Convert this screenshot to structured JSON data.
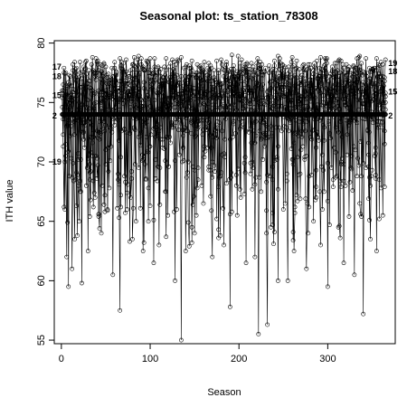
{
  "chart_data": {
    "type": "line",
    "title": "Seasonal plot: ts_station_78308",
    "xlabel": "Season",
    "ylabel": "ITH value",
    "xlim": [
      -8,
      376
    ],
    "ylim": [
      54.7,
      80.2
    ],
    "xticks": [
      0,
      100,
      200,
      300
    ],
    "yticks": [
      55,
      60,
      65,
      70,
      75,
      80
    ],
    "grid": false,
    "legend": "none",
    "series_color": "#000000",
    "marker": "open-circle",
    "num_seasons": 365,
    "year_labels": [
      {
        "text": "17",
        "x": 0,
        "y": 78.0
      },
      {
        "text": "18",
        "x": 0,
        "y": 77.2
      },
      {
        "text": "15",
        "x": 0,
        "y": 75.6
      },
      {
        "text": "2",
        "x": 0,
        "y": 73.9
      },
      {
        "text": "19",
        "x": 0,
        "y": 70.0
      },
      {
        "text": "19",
        "x": 365,
        "y": 78.3
      },
      {
        "text": "18",
        "x": 365,
        "y": 77.6
      },
      {
        "text": "15",
        "x": 365,
        "y": 75.9
      },
      {
        "text": "2",
        "x": 365,
        "y": 73.9
      }
    ],
    "series": [
      {
        "name": "",
        "flat": true,
        "value": 74.0,
        "x_range": [
          1,
          365
        ]
      },
      {
        "name": "",
        "x_range": [
          1,
          365
        ],
        "base": 75.5,
        "amplitude": 2.8,
        "seed": 11,
        "dips": [
          {
            "x": 8,
            "y": 59.5
          },
          {
            "x": 12,
            "y": 61.0
          },
          {
            "x": 23,
            "y": 59.8
          },
          {
            "x": 66,
            "y": 57.5
          },
          {
            "x": 110,
            "y": 63.0
          },
          {
            "x": 135,
            "y": 55.0
          },
          {
            "x": 190,
            "y": 57.8
          },
          {
            "x": 222,
            "y": 55.5
          },
          {
            "x": 232,
            "y": 56.3
          },
          {
            "x": 255,
            "y": 60.0
          },
          {
            "x": 300,
            "y": 59.5
          },
          {
            "x": 340,
            "y": 57.2
          }
        ]
      },
      {
        "name": "",
        "x_range": [
          1,
          365
        ],
        "base": 76.2,
        "amplitude": 2.5,
        "seed": 23,
        "dips": [
          {
            "x": 6,
            "y": 62.0
          },
          {
            "x": 30,
            "y": 62.5
          },
          {
            "x": 58,
            "y": 60.5
          },
          {
            "x": 92,
            "y": 62.5
          },
          {
            "x": 128,
            "y": 60.0
          },
          {
            "x": 170,
            "y": 62.0
          },
          {
            "x": 208,
            "y": 61.5
          },
          {
            "x": 244,
            "y": 60.0
          },
          {
            "x": 276,
            "y": 61.0
          },
          {
            "x": 318,
            "y": 61.5
          },
          {
            "x": 355,
            "y": 62.5
          }
        ]
      },
      {
        "name": "",
        "x_range": [
          1,
          365
        ],
        "base": 75.0,
        "amplitude": 3.0,
        "seed": 37,
        "dips": [
          {
            "x": 15,
            "y": 63.5
          },
          {
            "x": 45,
            "y": 64.0
          },
          {
            "x": 80,
            "y": 63.5
          },
          {
            "x": 104,
            "y": 61.5
          },
          {
            "x": 140,
            "y": 62.5
          },
          {
            "x": 183,
            "y": 63.0
          },
          {
            "x": 218,
            "y": 62.0
          },
          {
            "x": 262,
            "y": 62.5
          },
          {
            "x": 292,
            "y": 63.0
          },
          {
            "x": 330,
            "y": 60.5
          },
          {
            "x": 348,
            "y": 63.5
          }
        ]
      },
      {
        "name": "",
        "x_range": [
          1,
          365
        ],
        "base": 76.8,
        "amplitude": 2.2,
        "seed": 53,
        "dips": [
          {
            "x": 20,
            "y": 65.0
          },
          {
            "x": 52,
            "y": 66.0
          },
          {
            "x": 98,
            "y": 65.0
          },
          {
            "x": 150,
            "y": 64.0
          },
          {
            "x": 198,
            "y": 65.5
          },
          {
            "x": 236,
            "y": 64.5
          },
          {
            "x": 284,
            "y": 65.0
          },
          {
            "x": 312,
            "y": 64.5
          },
          {
            "x": 362,
            "y": 65.5
          }
        ]
      },
      {
        "name": "",
        "x_range": [
          1,
          365
        ],
        "base": 74.5,
        "amplitude": 3.2,
        "seed": 71,
        "dips": [
          {
            "x": 4,
            "y": 66.0
          },
          {
            "x": 38,
            "y": 67.0
          },
          {
            "x": 74,
            "y": 66.0
          },
          {
            "x": 118,
            "y": 67.5
          },
          {
            "x": 160,
            "y": 66.5
          },
          {
            "x": 202,
            "y": 67.0
          },
          {
            "x": 250,
            "y": 66.0
          },
          {
            "x": 296,
            "y": 67.5
          },
          {
            "x": 336,
            "y": 66.5
          }
        ]
      }
    ]
  }
}
